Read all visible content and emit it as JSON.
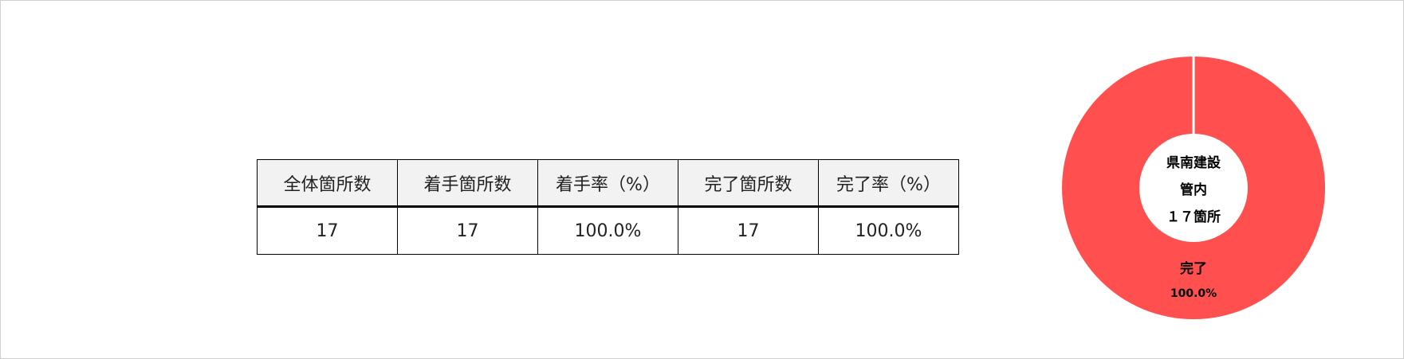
{
  "table": {
    "headers": [
      "全体箇所数",
      "着手箇所数",
      "着手率（%）",
      "完了箇所数",
      "完了率（%）"
    ],
    "row": [
      "17",
      "17",
      "100.0%",
      "17",
      "100.0%"
    ]
  },
  "chart_data": {
    "type": "pie",
    "variant": "donut",
    "center_label": [
      "県南建設",
      "管内",
      "１７箇所"
    ],
    "slices": [
      {
        "label": "完了",
        "value": 100.0,
        "value_label": "100.0%",
        "color": "#FF4F4F"
      }
    ]
  }
}
